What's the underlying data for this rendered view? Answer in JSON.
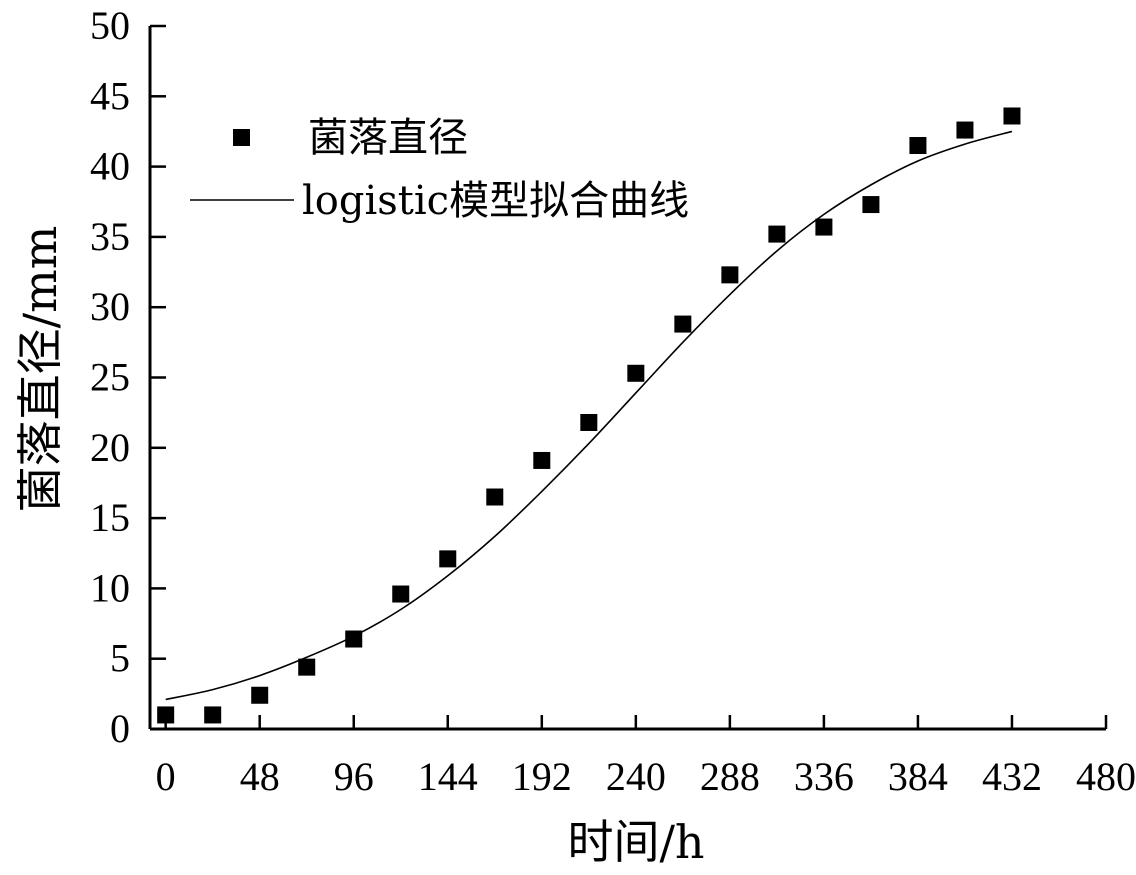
{
  "chart_data": {
    "type": "scatter",
    "xlabel": "时间/h",
    "ylabel": "菌落直径/mm",
    "xlim": [
      -8,
      480
    ],
    "ylim": [
      0,
      50
    ],
    "x_ticks": [
      0,
      48,
      96,
      144,
      192,
      240,
      288,
      336,
      384,
      432,
      480
    ],
    "x_tick_labels": [
      "0",
      "48",
      "96",
      "144",
      "192",
      "240",
      "288",
      "336",
      "384",
      "432",
      "480"
    ],
    "y_ticks": [
      0,
      5,
      10,
      15,
      20,
      25,
      30,
      35,
      40,
      45,
      50
    ],
    "y_tick_labels": [
      "0",
      "5",
      "10",
      "15",
      "20",
      "25",
      "30",
      "35",
      "40",
      "45",
      "50"
    ],
    "grid": false,
    "legend_position": "top-left",
    "series": [
      {
        "name": "菌落直径",
        "kind": "markers",
        "marker": "square",
        "color": "#000000",
        "x": [
          0,
          24,
          48,
          72,
          96,
          120,
          144,
          168,
          192,
          216,
          240,
          264,
          288,
          312,
          336,
          360,
          384,
          408,
          432
        ],
        "y": [
          1.0,
          1.0,
          2.4,
          4.4,
          6.4,
          9.6,
          12.1,
          16.5,
          19.1,
          21.8,
          25.3,
          28.8,
          32.3,
          35.2,
          35.7,
          37.3,
          41.5,
          42.6,
          43.6
        ]
      },
      {
        "name": "logistic模型拟合曲线",
        "kind": "line",
        "color": "#000000",
        "x": [
          0,
          24,
          48,
          72,
          96,
          120,
          144,
          168,
          192,
          216,
          240,
          264,
          288,
          312,
          336,
          360,
          384,
          408,
          432
        ],
        "y": [
          2.1,
          2.8,
          3.8,
          5.1,
          6.6,
          8.5,
          10.9,
          13.7,
          16.9,
          20.3,
          23.9,
          27.5,
          30.9,
          34.0,
          36.6,
          38.7,
          40.4,
          41.6,
          42.5
        ]
      }
    ]
  }
}
